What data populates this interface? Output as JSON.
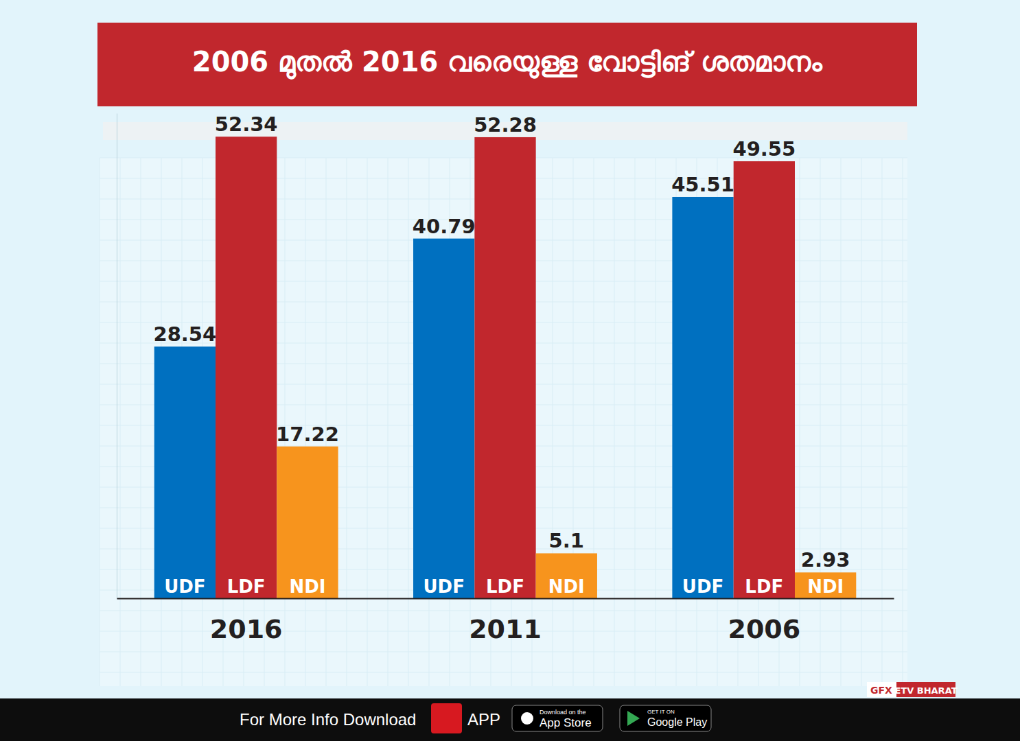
{
  "chart_data": {
    "type": "bar",
    "title": "2006 മുതൽ 2016 വരെയുള്ള വോട്ടിങ് ശതമാനം",
    "categories": [
      "2016",
      "2011",
      "2006"
    ],
    "series": [
      {
        "name": "UDF",
        "color": "#0070c0",
        "values": [
          28.54,
          40.79,
          45.51
        ]
      },
      {
        "name": "LDF",
        "color": "#c1272d",
        "values": [
          52.34,
          52.28,
          49.55
        ]
      },
      {
        "name": "NDI",
        "color": "#f7941d",
        "values": [
          17.22,
          5.1,
          2.93
        ]
      }
    ],
    "ylim": [
      0,
      55
    ],
    "yticks": [],
    "tick_labels": "x",
    "data_labels": true,
    "annotations": [
      "GFX",
      "ETV BHARAT",
      "For More Info Download",
      "APP",
      "Download on the",
      "App Store",
      "GET IT ON",
      "Google Play"
    ]
  }
}
